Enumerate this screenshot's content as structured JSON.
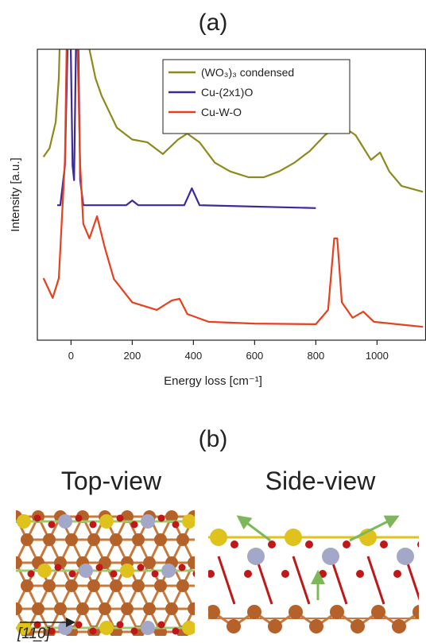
{
  "chart_data": {
    "type": "line",
    "title": "(a)",
    "xlabel": "Energy loss [cm⁻¹]",
    "ylabel": "Intensity [a.u.]",
    "xlim": [
      -110,
      1160
    ],
    "ylim": [
      0,
      100
    ],
    "xticks": [
      0,
      200,
      400,
      600,
      800,
      1000
    ],
    "legend": "top-right",
    "series": [
      {
        "name": "(WO₃)₃ condensed",
        "color": "#8c8a1a",
        "x": [
          -90,
          -70,
          -50,
          -40,
          -30,
          20,
          60,
          80,
          100,
          150,
          200,
          250,
          300,
          350,
          380,
          420,
          470,
          520,
          580,
          630,
          680,
          730,
          780,
          830,
          880,
          930,
          980,
          1010,
          1040,
          1080,
          1150
        ],
        "values": [
          63,
          66,
          75,
          90,
          130,
          140,
          100,
          90,
          84,
          73,
          69,
          68,
          64,
          69,
          71,
          68,
          61,
          58,
          56,
          56,
          58,
          61,
          65,
          70.5,
          74,
          70.5,
          62,
          64.5,
          58,
          53,
          51
        ]
      },
      {
        "name": "Cu-(2x1)O",
        "color": "#3a2a9a",
        "x": [
          -45,
          -35,
          -20,
          -5,
          5,
          10,
          20,
          30,
          40,
          180,
          200,
          220,
          370,
          395,
          420,
          800
        ],
        "values": [
          46.4,
          46.4,
          60,
          130,
          60,
          55,
          130,
          55,
          46.4,
          46.4,
          48,
          46.4,
          46.4,
          52.2,
          46.4,
          45.4
        ]
      },
      {
        "name": "Cu-W-O",
        "color": "#e8401c",
        "x": [
          -90,
          -60,
          -40,
          -20,
          -10,
          15,
          30,
          40,
          60,
          85,
          110,
          140,
          200,
          280,
          330,
          355,
          380,
          450,
          600,
          800,
          840,
          860,
          870,
          885,
          920,
          955,
          990,
          1150
        ],
        "values": [
          21.3,
          14.5,
          21.3,
          62,
          130,
          130,
          60,
          40,
          35,
          42.6,
          32,
          21,
          13,
          10.4,
          13.7,
          14.2,
          9,
          6.3,
          5.7,
          5.5,
          10.4,
          35,
          35,
          13,
          7.7,
          9.8,
          6.3,
          4.6
        ]
      }
    ]
  },
  "panel_b": {
    "label": "(b)",
    "top_view": "Top-view",
    "side_view": "Side-view",
    "direction": "[11̲0]"
  }
}
